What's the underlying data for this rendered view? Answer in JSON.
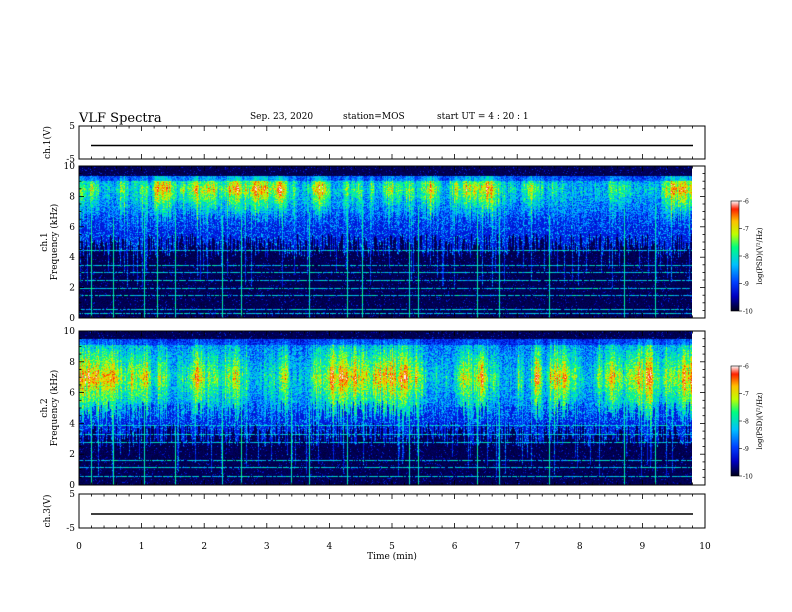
{
  "header": {
    "title": "VLF Spectra",
    "date": "Sep. 23, 2020",
    "station": "station=MOS",
    "start": "start  UT =   4 : 20 : 1"
  },
  "colors": {
    "background": "#ffffff",
    "spectrogram_floor": "#000000",
    "trace": "#000000",
    "colormap": [
      "#000020",
      "#0000c0",
      "#0040ff",
      "#00c0ff",
      "#00ff80",
      "#c0ff00",
      "#ffc000",
      "#ff2000",
      "#ffffff"
    ]
  },
  "chart_data": [
    {
      "type": "line",
      "name": "waveform-ch1",
      "ylabel": "ch.1(V)",
      "ylim": [
        -5,
        5
      ],
      "yticks": [
        "5",
        "-5"
      ],
      "xlim": [
        0,
        10
      ],
      "trace_level_v": 0,
      "grid": false
    },
    {
      "type": "heatmap",
      "name": "spectrogram-ch1",
      "ylabel": "ch.1\nFrequency (kHz)",
      "ylim": [
        0,
        10
      ],
      "yticks": [
        "0",
        "2",
        "4",
        "6",
        "8",
        "10"
      ],
      "xlim": [
        0,
        9.85
      ],
      "colorbar": {
        "label": "log(PSD)(V²/Hz)",
        "range": [
          -10,
          -6
        ],
        "ticks": [
          "-6",
          "-7",
          "-8",
          "-9",
          "-10"
        ]
      },
      "emission_band_khz": [
        6.0,
        9.4
      ],
      "emission_peak_khz": 8.5,
      "whistler_times_min": [
        0.2,
        0.55,
        1.05,
        1.25,
        1.55,
        2.3,
        2.6,
        3.7,
        4.3,
        4.55,
        5.3,
        5.45,
        6.4,
        6.75,
        7.55,
        8.75,
        9.25
      ],
      "line_frequencies_khz": [
        0.3,
        0.6,
        1.5,
        2.0,
        2.5,
        3.0,
        3.5,
        4.5
      ]
    },
    {
      "type": "heatmap",
      "name": "spectrogram-ch2",
      "ylabel": "ch.2\nFrequency (kHz)",
      "ylim": [
        0,
        10
      ],
      "yticks": [
        "0",
        "2",
        "4",
        "6",
        "8",
        "10"
      ],
      "xlim": [
        0,
        9.85
      ],
      "colorbar": {
        "label": "log(PSD)(V²/Hz)",
        "range": [
          -10,
          -6
        ],
        "ticks": [
          "-6",
          "-7",
          "-8",
          "-9",
          "-10"
        ]
      },
      "emission_band_khz": [
        4.5,
        9.5
      ],
      "emission_peak_khz": 7.0,
      "whistler_times_min": [
        0.2,
        0.55,
        1.05,
        1.55,
        2.3,
        2.6,
        3.4,
        3.7,
        4.3,
        5.3,
        5.45,
        6.4,
        6.75,
        7.55,
        8.75,
        9.25
      ],
      "line_frequencies_khz": [
        0.6,
        1.2,
        1.6,
        2.8,
        3.3,
        3.9
      ]
    },
    {
      "type": "line",
      "name": "waveform-ch3",
      "ylabel": "ch.3(V)",
      "ylim": [
        -5,
        5
      ],
      "yticks": [
        "5",
        "-5"
      ],
      "xlim": [
        0,
        10
      ],
      "xlabel": "Time (min)",
      "xticks": [
        "0",
        "1",
        "2",
        "3",
        "4",
        "5",
        "6",
        "7",
        "8",
        "9",
        "10"
      ],
      "trace_level_v": 0,
      "grid": false
    }
  ]
}
